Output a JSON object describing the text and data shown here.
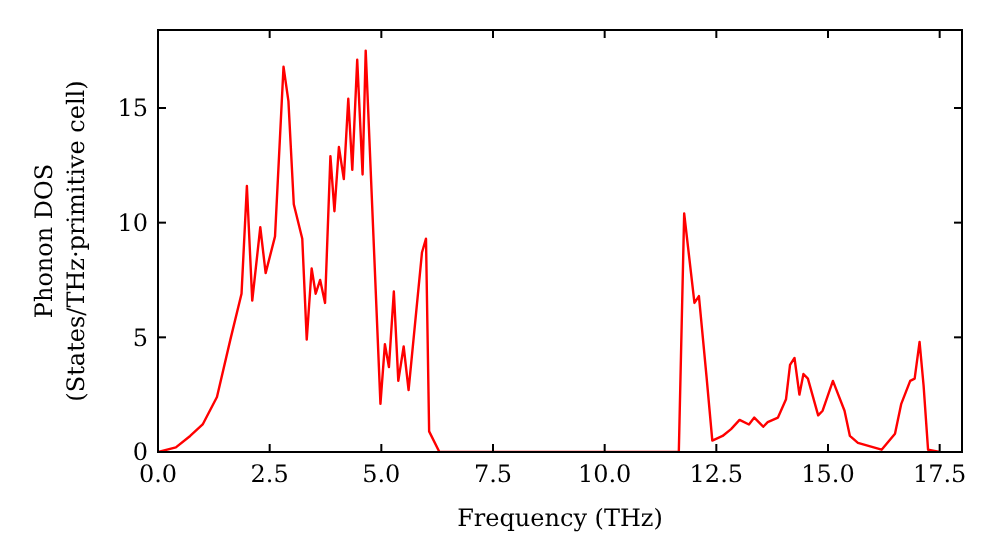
{
  "chart_data": {
    "type": "line",
    "xlabel": "Frequency (THz)",
    "ylabel": "Phonon DOS\n(States/THz·primitive cell)",
    "xlim": [
      0,
      18
    ],
    "ylim": [
      0,
      18.4
    ],
    "xticks": [
      {
        "value": 0,
        "label": "0.0"
      },
      2.5,
      {
        "value": 5,
        "label": "5.0"
      },
      7.5,
      {
        "value": 10,
        "label": "10.0"
      },
      12.5,
      {
        "value": 15,
        "label": "15.0"
      },
      17.5
    ],
    "yticks": [
      0,
      5,
      10,
      15
    ],
    "grid": false,
    "marker": "none",
    "line_style": "solid",
    "series": [
      {
        "color": "#ff0000",
        "x": [
          0,
          0.4,
          0.72,
          1.0,
          1.32,
          1.62,
          1.87,
          1.99,
          2.11,
          2.29,
          2.41,
          2.62,
          2.81,
          2.92,
          3.04,
          3.23,
          3.33,
          3.44,
          3.53,
          3.63,
          3.74,
          3.86,
          3.95,
          4.05,
          4.16,
          4.26,
          4.35,
          4.46,
          4.58,
          4.65,
          4.98,
          5.08,
          5.17,
          5.28,
          5.38,
          5.5,
          5.61,
          5.91,
          6.0,
          6.07,
          6.3,
          11.66,
          11.78,
          12.01,
          12.11,
          12.28,
          12.41,
          12.64,
          12.83,
          13.02,
          13.23,
          13.35,
          13.55,
          13.65,
          13.88,
          14.06,
          14.15,
          14.25,
          14.36,
          14.45,
          14.55,
          14.78,
          14.88,
          15.11,
          15.37,
          15.49,
          15.67,
          16.2,
          16.5,
          16.64,
          16.84,
          16.94,
          17.05,
          17.14,
          17.24,
          17.5
        ],
        "values": [
          0,
          0.2,
          0.7,
          1.2,
          2.4,
          4.9,
          6.9,
          11.6,
          6.6,
          9.8,
          7.8,
          9.4,
          16.8,
          15.3,
          10.8,
          9.3,
          4.9,
          8.0,
          6.9,
          7.5,
          6.5,
          12.9,
          10.5,
          13.3,
          11.9,
          15.4,
          12.3,
          17.1,
          12.1,
          17.5,
          2.1,
          4.7,
          3.7,
          7.0,
          3.1,
          4.6,
          2.7,
          8.7,
          9.3,
          0.9,
          0,
          0,
          10.4,
          6.5,
          6.8,
          3.3,
          0.5,
          0.7,
          1.0,
          1.4,
          1.2,
          1.5,
          1.1,
          1.3,
          1.5,
          2.3,
          3.8,
          4.1,
          2.5,
          3.4,
          3.2,
          1.6,
          1.8,
          3.1,
          1.8,
          0.7,
          0.4,
          0.1,
          0.8,
          2.1,
          3.1,
          3.2,
          4.8,
          2.9,
          0.1,
          0
        ]
      }
    ]
  }
}
